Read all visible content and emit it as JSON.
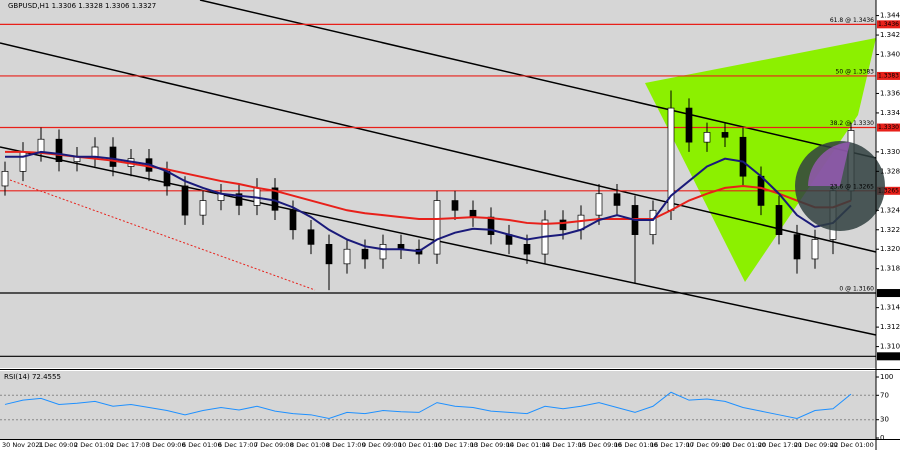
{
  "chart_data": [
    {
      "type": "candlestick",
      "title": "GBPUSD,H1  1.3306 1.3328 1.3306 1.3327",
      "categories": [
        "30 Nov 2021",
        null,
        "1 Dec 09:00",
        null,
        "2 Dec 01:00",
        null,
        "2 Dec 17:00",
        null,
        "3 Dec 09:00",
        null,
        "6 Dec 01:00",
        null,
        "6 Dec 17:00",
        null,
        "7 Dec 09:00",
        null,
        "8 Dec 01:00",
        null,
        "8 Dec 17:00",
        null,
        "9 Dec 09:00",
        null,
        "10 Dec 01:00",
        null,
        "10 Dec 17:00",
        null,
        "13 Dec 09:00",
        null,
        "14 Dec 01:00",
        null,
        "14 Dec 17:00",
        null,
        "15 Dec 09:00",
        null,
        "16 Dec 01:00",
        null,
        "16 Dec 17:00",
        null,
        "17 Dec 09:00",
        null,
        "20 Dec 01:00",
        null,
        "20 Dec 17:00",
        null,
        "21 Dec 09:00",
        null,
        "22 Dec 01:00",
        null
      ],
      "open": [
        1.327,
        1.3285,
        1.3305,
        1.3318,
        1.3295,
        1.33,
        1.331,
        1.329,
        1.3298,
        1.3285,
        1.327,
        1.324,
        1.3255,
        1.3262,
        1.325,
        1.3268,
        1.3245,
        1.3225,
        1.321,
        1.319,
        1.3205,
        1.3195,
        1.321,
        1.3205,
        1.32,
        1.3255,
        1.3245,
        1.3238,
        1.322,
        1.321,
        1.32,
        1.3235,
        1.3225,
        1.324,
        1.3262,
        1.325,
        1.322,
        1.3245,
        1.335,
        1.3315,
        1.3325,
        1.332,
        1.328,
        1.325,
        1.322,
        1.3195,
        1.3215,
        1.3265
      ],
      "high": [
        1.3295,
        1.3315,
        1.333,
        1.3328,
        1.331,
        1.332,
        1.332,
        1.3308,
        1.3308,
        1.3295,
        1.328,
        1.3265,
        1.3272,
        1.3272,
        1.3278,
        1.3278,
        1.3255,
        1.3235,
        1.322,
        1.3215,
        1.3215,
        1.322,
        1.322,
        1.3215,
        1.3265,
        1.3265,
        1.3255,
        1.3248,
        1.323,
        1.322,
        1.3245,
        1.3245,
        1.325,
        1.3272,
        1.3272,
        1.326,
        1.3255,
        1.3368,
        1.336,
        1.3335,
        1.3335,
        1.333,
        1.329,
        1.326,
        1.323,
        1.3225,
        1.3275,
        1.3335
      ],
      "low": [
        1.326,
        1.3275,
        1.3295,
        1.3285,
        1.3285,
        1.329,
        1.328,
        1.328,
        1.3275,
        1.326,
        1.323,
        1.323,
        1.3245,
        1.324,
        1.324,
        1.3235,
        1.3215,
        1.32,
        1.3163,
        1.318,
        1.3185,
        1.3185,
        1.3195,
        1.319,
        1.319,
        1.3235,
        1.3228,
        1.321,
        1.32,
        1.319,
        1.319,
        1.3215,
        1.3215,
        1.323,
        1.324,
        1.317,
        1.321,
        1.3235,
        1.3305,
        1.3305,
        1.331,
        1.327,
        1.324,
        1.321,
        1.318,
        1.3185,
        1.32,
        1.3255
      ],
      "close": [
        1.3285,
        1.3305,
        1.3318,
        1.3295,
        1.33,
        1.331,
        1.329,
        1.3298,
        1.3285,
        1.327,
        1.324,
        1.3255,
        1.3262,
        1.325,
        1.3268,
        1.3245,
        1.3225,
        1.321,
        1.319,
        1.3205,
        1.3195,
        1.321,
        1.3205,
        1.32,
        1.3255,
        1.3245,
        1.3238,
        1.322,
        1.321,
        1.32,
        1.3235,
        1.3225,
        1.324,
        1.3262,
        1.325,
        1.322,
        1.3245,
        1.335,
        1.3315,
        1.3325,
        1.332,
        1.328,
        1.325,
        1.322,
        1.3195,
        1.3215,
        1.3265,
        1.3327
      ],
      "series": [
        {
          "color": "#e8201a",
          "values": [
            1.3305,
            1.3305,
            1.3304,
            1.3302,
            1.33,
            1.3298,
            1.3296,
            1.3293,
            1.329,
            1.3287,
            1.3283,
            1.3279,
            1.3275,
            1.3272,
            1.3268,
            1.3265,
            1.326,
            1.3255,
            1.325,
            1.3245,
            1.3242,
            1.324,
            1.3238,
            1.3236,
            1.3236,
            1.3237,
            1.3238,
            1.3237,
            1.3235,
            1.3232,
            1.3231,
            1.3232,
            1.3234,
            1.3236,
            1.3236,
            1.3236,
            1.3236,
            1.3245,
            1.3255,
            1.3262,
            1.3268,
            1.327,
            1.3268,
            1.3262,
            1.3255,
            1.3248,
            1.3248,
            1.3255
          ]
        },
        {
          "color": "#1a1a7a",
          "values": [
            1.33,
            1.33,
            1.3305,
            1.3303,
            1.33,
            1.33,
            1.3298,
            1.3295,
            1.3292,
            1.3285,
            1.3275,
            1.3268,
            1.3262,
            1.326,
            1.3258,
            1.3255,
            1.3248,
            1.3238,
            1.3225,
            1.3215,
            1.3208,
            1.3205,
            1.3205,
            1.3203,
            1.3215,
            1.3222,
            1.3226,
            1.3225,
            1.322,
            1.3215,
            1.3218,
            1.322,
            1.3225,
            1.3235,
            1.324,
            1.3235,
            1.3235,
            1.326,
            1.3275,
            1.329,
            1.3298,
            1.3295,
            1.328,
            1.3262,
            1.324,
            1.3228,
            1.3232,
            1.325
          ]
        }
      ],
      "levels": [
        {
          "value": 1.3436,
          "color": "#e8201a",
          "text": "61.8 @ 1.3436"
        },
        {
          "value": 1.3383,
          "color": "#e8201a",
          "text": "50 @ 1.3383"
        },
        {
          "value": {
            "value": 1.333,
            "label": "1.3330"
          },
          "color": "#e8201a",
          "text": "38.2 @ 1.3330"
        },
        {
          "value": 1.3265,
          "color": "#e8201a",
          "text": "23.6 @ 1.3265"
        },
        {
          "value": {
            "value": 1.316,
            "label": "1.3160"
          },
          "color": "#000000",
          "text": "0 @ 1.3160"
        },
        {
          "value": 1.3095,
          "color": "#000000"
        }
      ],
      "ylim": [
        1.3083,
        1.3461
      ],
      "yticks": [
        1.3445,
        1.3425,
        1.3405,
        1.3365,
        1.3345,
        1.3305,
        1.3285,
        1.3245,
        1.3225,
        1.3205,
        1.3185,
        1.3145,
        1.3125,
        1.3105
      ]
    },
    {
      "type": "line",
      "title": "RSI(14) 72.4555",
      "color": "#1e90ff",
      "values": [
        55,
        62,
        65,
        55,
        57,
        60,
        52,
        55,
        50,
        45,
        38,
        45,
        50,
        46,
        52,
        44,
        40,
        38,
        32,
        42,
        40,
        45,
        43,
        42,
        58,
        52,
        50,
        44,
        42,
        40,
        52,
        48,
        52,
        58,
        50,
        42,
        52,
        75,
        62,
        64,
        60,
        50,
        44,
        38,
        32,
        45,
        48,
        72
      ],
      "ylim": [
        0,
        100
      ],
      "yticks": [
        100,
        70,
        30,
        0
      ]
    }
  ]
}
